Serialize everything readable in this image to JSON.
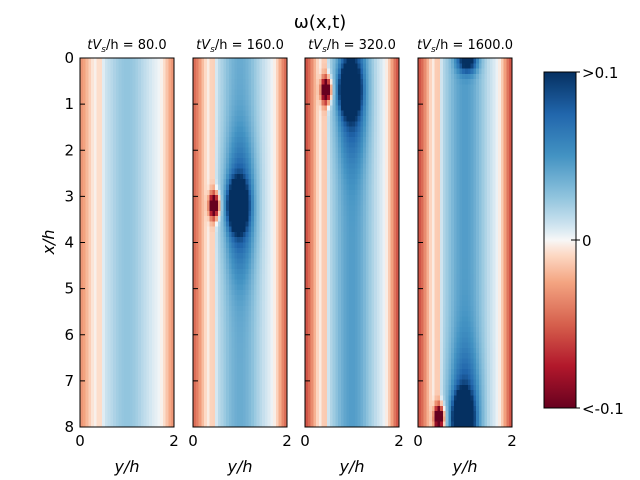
{
  "chart_data": {
    "type": "heatmap",
    "title": "ω(x,t)",
    "xlabel": "y/h",
    "ylabel": "x/h",
    "x_ticks": [
      "0",
      "2"
    ],
    "y_ticks": [
      "0",
      "1",
      "2",
      "3",
      "4",
      "5",
      "6",
      "7",
      "8"
    ],
    "xlim": [
      0,
      2
    ],
    "ylim": [
      0,
      8
    ],
    "colorbar": {
      "min_label": "<-0.1",
      "mid_label": "0",
      "max_label": ">0.1",
      "vmin": -0.1,
      "vmax": 0.1,
      "colormap": "RdBu"
    },
    "panels": [
      {
        "title": "tV_s/h = 80.0",
        "title_prefix": "tV",
        "title_sub": "s",
        "title_suffix": "/h = 80.0",
        "base_amp": 0.28,
        "vortex": null
      },
      {
        "title": "tV_s/h = 160.0",
        "title_prefix": "tV",
        "title_sub": "s",
        "title_suffix": "/h = 160.0",
        "base_amp": 0.42,
        "vortex": {
          "x": 3.2,
          "strength": 1.0
        }
      },
      {
        "title": "tV_s/h = 320.0",
        "title_prefix": "tV",
        "title_sub": "s",
        "title_suffix": "/h = 320.0",
        "base_amp": 0.5,
        "vortex": {
          "x": 0.7,
          "strength": 1.0
        }
      },
      {
        "title": "tV_s/h = 1600.0",
        "title_prefix": "tV",
        "title_sub": "s",
        "title_suffix": "/h = 1600.0",
        "base_amp": 0.5,
        "vortex": {
          "x": 7.8,
          "strength": 1.0
        },
        "top_blob": true
      }
    ]
  }
}
